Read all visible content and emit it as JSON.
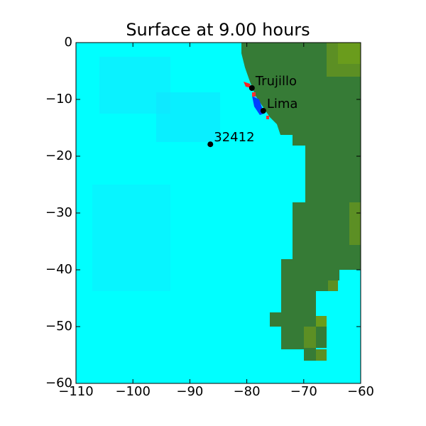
{
  "chart_data": {
    "type": "map",
    "title": "Surface at 9.00 hours",
    "xlim": [
      -110,
      -60
    ],
    "ylim": [
      -60,
      0
    ],
    "xticks": [
      {
        "value": -110,
        "label": "−110"
      },
      {
        "value": -100,
        "label": "−100"
      },
      {
        "value": -90,
        "label": "−90"
      },
      {
        "value": -80,
        "label": "−80"
      },
      {
        "value": -70,
        "label": "−70"
      },
      {
        "value": -60,
        "label": "−60"
      }
    ],
    "yticks": [
      0,
      {
        "value": -10,
        "label": "−10"
      },
      {
        "value": -20,
        "label": "−20"
      },
      {
        "value": -30,
        "label": "−30"
      },
      {
        "value": -40,
        "label": "−40"
      },
      {
        "value": -50,
        "label": "−50"
      },
      {
        "value": -60,
        "label": "−60"
      }
    ],
    "points": [
      {
        "name": "Trujillo",
        "x": -79.1,
        "y": -8.0
      },
      {
        "name": "Lima",
        "x": -77.1,
        "y": -12.0
      },
      {
        "name": "32412",
        "x": -86.4,
        "y": -17.9
      }
    ]
  }
}
